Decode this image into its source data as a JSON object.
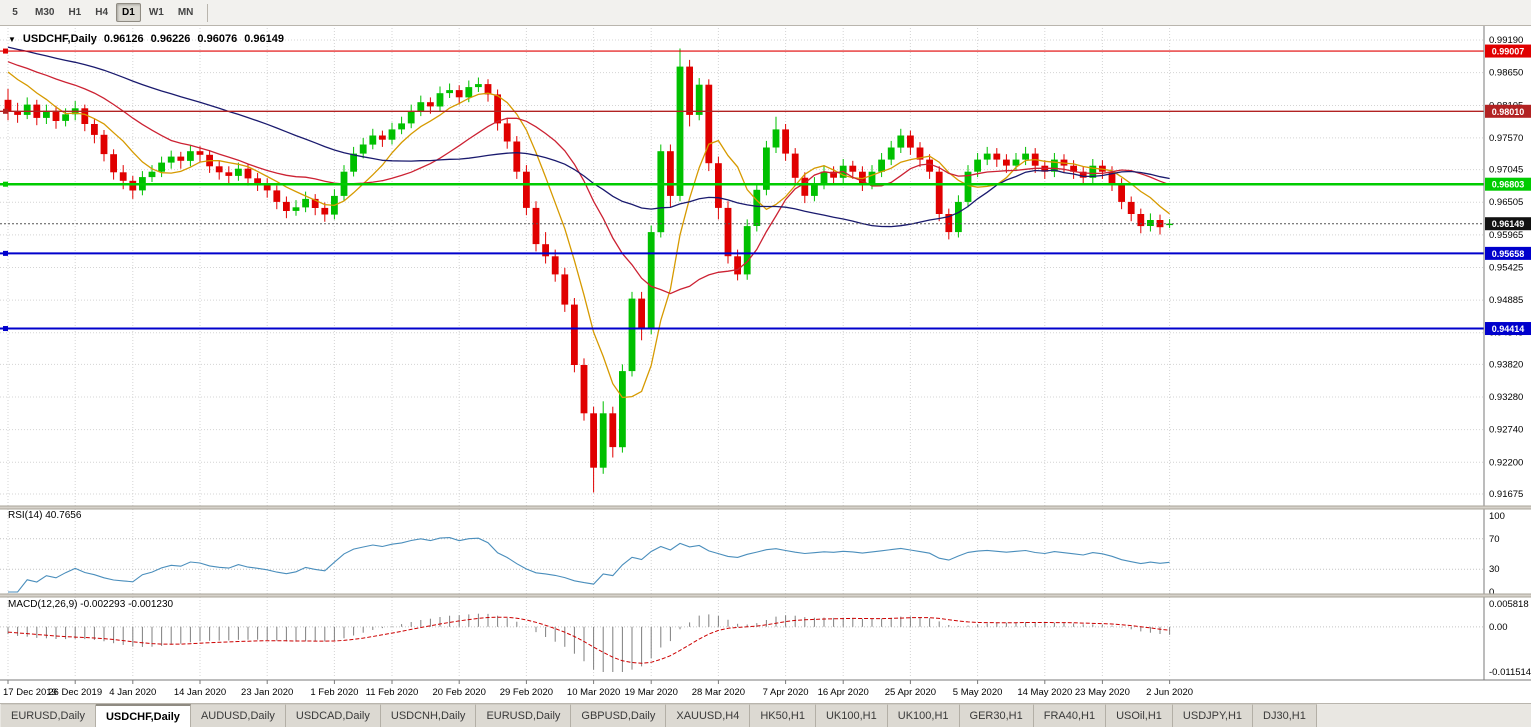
{
  "toolbar": {
    "timeframes": [
      {
        "label": "5",
        "active": false
      },
      {
        "label": "M30",
        "active": false
      },
      {
        "label": "H1",
        "active": false
      },
      {
        "label": "H4",
        "active": false
      },
      {
        "label": "D1",
        "active": true
      },
      {
        "label": "W1",
        "active": false
      },
      {
        "label": "MN",
        "active": false
      }
    ]
  },
  "chart_title": {
    "menu_icon": "▼",
    "symbol": "USDCHF,Daily",
    "open": "0.96126",
    "high": "0.96226",
    "low": "0.96076",
    "close": "0.96149"
  },
  "chart_data": {
    "type": "candlestick",
    "symbol": "USDCHF",
    "period": "Daily",
    "price_range": [
      0.91675,
      0.9919
    ],
    "price_axis_labels": [
      "0.99190",
      "0.98650",
      "0.98105",
      "0.97570",
      "0.97045",
      "0.96505",
      "0.95965",
      "0.95425",
      "0.94885",
      "0.94345",
      "0.93820",
      "0.93280",
      "0.92740",
      "0.92200",
      "0.91675"
    ],
    "date_labels": [
      "17 Dec 2019",
      "26 Dec 2019",
      "4 Jan 2020",
      "14 Jan 2020",
      "23 Jan 2020",
      "1 Feb 2020",
      "11 Feb 2020",
      "20 Feb 2020",
      "29 Feb 2020",
      "10 Mar 2020",
      "19 Mar 2020",
      "28 Mar 2020",
      "7 Apr 2020",
      "16 Apr 2020",
      "25 Apr 2020",
      "5 May 2020",
      "14 May 2020",
      "23 May 2020",
      "2 Jun 2020"
    ],
    "colors": {
      "bull": "#00c000",
      "bear": "#e00000"
    },
    "ohlc": [
      [
        0.982,
        0.9838,
        0.9786,
        0.98
      ],
      [
        0.98,
        0.9815,
        0.9782,
        0.9795
      ],
      [
        0.9795,
        0.9824,
        0.9788,
        0.9812
      ],
      [
        0.9812,
        0.982,
        0.9778,
        0.979
      ],
      [
        0.979,
        0.9812,
        0.978,
        0.9802
      ],
      [
        0.9802,
        0.981,
        0.9772,
        0.9785
      ],
      [
        0.9785,
        0.9806,
        0.9776,
        0.9796
      ],
      [
        0.9796,
        0.9818,
        0.9786,
        0.9806
      ],
      [
        0.9806,
        0.9812,
        0.9768,
        0.978
      ],
      [
        0.978,
        0.9788,
        0.9748,
        0.9762
      ],
      [
        0.9762,
        0.977,
        0.9718,
        0.973
      ],
      [
        0.973,
        0.9738,
        0.9688,
        0.97
      ],
      [
        0.97,
        0.9712,
        0.9672,
        0.9686
      ],
      [
        0.9686,
        0.9694,
        0.9656,
        0.967
      ],
      [
        0.967,
        0.9702,
        0.9662,
        0.9692
      ],
      [
        0.9692,
        0.9712,
        0.9684,
        0.9701
      ],
      [
        0.9701,
        0.9726,
        0.9692,
        0.9716
      ],
      [
        0.9716,
        0.9736,
        0.9706,
        0.9726
      ],
      [
        0.9726,
        0.9734,
        0.9706,
        0.9719
      ],
      [
        0.9719,
        0.9745,
        0.971,
        0.9735
      ],
      [
        0.9735,
        0.9743,
        0.9717,
        0.9729
      ],
      [
        0.9729,
        0.9737,
        0.9699,
        0.971
      ],
      [
        0.971,
        0.9719,
        0.9688,
        0.97
      ],
      [
        0.97,
        0.971,
        0.9682,
        0.9694
      ],
      [
        0.9694,
        0.9716,
        0.9686,
        0.9706
      ],
      [
        0.9706,
        0.9714,
        0.9678,
        0.969
      ],
      [
        0.969,
        0.9699,
        0.9669,
        0.9681
      ],
      [
        0.9681,
        0.969,
        0.9658,
        0.967
      ],
      [
        0.967,
        0.9678,
        0.9639,
        0.9651
      ],
      [
        0.9651,
        0.966,
        0.9624,
        0.9636
      ],
      [
        0.9636,
        0.9654,
        0.9628,
        0.9642
      ],
      [
        0.9642,
        0.9668,
        0.9634,
        0.9656
      ],
      [
        0.9656,
        0.9664,
        0.9629,
        0.9641
      ],
      [
        0.9641,
        0.965,
        0.9618,
        0.963
      ],
      [
        0.963,
        0.9672,
        0.9622,
        0.9661
      ],
      [
        0.9661,
        0.9712,
        0.9653,
        0.9701
      ],
      [
        0.9701,
        0.9742,
        0.9693,
        0.9731
      ],
      [
        0.9731,
        0.9757,
        0.9723,
        0.9746
      ],
      [
        0.9746,
        0.9772,
        0.9738,
        0.9761
      ],
      [
        0.9761,
        0.9769,
        0.9742,
        0.9754
      ],
      [
        0.9754,
        0.9782,
        0.9746,
        0.9771
      ],
      [
        0.9771,
        0.9792,
        0.9763,
        0.9781
      ],
      [
        0.9781,
        0.9812,
        0.9773,
        0.9801
      ],
      [
        0.9801,
        0.9827,
        0.9793,
        0.9816
      ],
      [
        0.9816,
        0.9824,
        0.9797,
        0.9809
      ],
      [
        0.9809,
        0.9842,
        0.9801,
        0.9831
      ],
      [
        0.9831,
        0.9847,
        0.9823,
        0.9836
      ],
      [
        0.9836,
        0.9844,
        0.9812,
        0.9824
      ],
      [
        0.9824,
        0.9852,
        0.9816,
        0.9841
      ],
      [
        0.9841,
        0.9857,
        0.9833,
        0.9846
      ],
      [
        0.9846,
        0.9854,
        0.9817,
        0.9829
      ],
      [
        0.9829,
        0.9837,
        0.9769,
        0.9781
      ],
      [
        0.9781,
        0.979,
        0.9739,
        0.9751
      ],
      [
        0.9751,
        0.976,
        0.9689,
        0.9701
      ],
      [
        0.9701,
        0.9712,
        0.9629,
        0.9641
      ],
      [
        0.9641,
        0.9652,
        0.9569,
        0.9581
      ],
      [
        0.9581,
        0.9601,
        0.9549,
        0.9561
      ],
      [
        0.9561,
        0.9572,
        0.9519,
        0.9531
      ],
      [
        0.9531,
        0.9542,
        0.9469,
        0.9481
      ],
      [
        0.9481,
        0.9492,
        0.9369,
        0.9381
      ],
      [
        0.9381,
        0.9392,
        0.9289,
        0.9301
      ],
      [
        0.9301,
        0.9312,
        0.917,
        0.9211
      ],
      [
        0.9211,
        0.9321,
        0.9201,
        0.9301
      ],
      [
        0.9301,
        0.9312,
        0.9228,
        0.9245
      ],
      [
        0.9245,
        0.9382,
        0.9236,
        0.9371
      ],
      [
        0.9371,
        0.9502,
        0.9362,
        0.9491
      ],
      [
        0.9491,
        0.9502,
        0.9422,
        0.9441
      ],
      [
        0.9441,
        0.9612,
        0.9432,
        0.9601
      ],
      [
        0.9601,
        0.9746,
        0.9592,
        0.9735
      ],
      [
        0.9735,
        0.9746,
        0.9642,
        0.9661
      ],
      [
        0.9661,
        0.9905,
        0.9652,
        0.9875
      ],
      [
        0.9875,
        0.9886,
        0.9776,
        0.9795
      ],
      [
        0.9795,
        0.9856,
        0.9786,
        0.9845
      ],
      [
        0.9845,
        0.9854,
        0.9702,
        0.9715
      ],
      [
        0.9715,
        0.9726,
        0.9622,
        0.9641
      ],
      [
        0.9641,
        0.9652,
        0.9549,
        0.9561
      ],
      [
        0.9561,
        0.9572,
        0.9521,
        0.9531
      ],
      [
        0.9531,
        0.9622,
        0.9522,
        0.9611
      ],
      [
        0.9611,
        0.9682,
        0.9602,
        0.9671
      ],
      [
        0.9671,
        0.9752,
        0.9662,
        0.9741
      ],
      [
        0.9741,
        0.9792,
        0.9732,
        0.9771
      ],
      [
        0.9771,
        0.978,
        0.9719,
        0.9731
      ],
      [
        0.9731,
        0.974,
        0.9679,
        0.9691
      ],
      [
        0.9691,
        0.97,
        0.9649,
        0.9661
      ],
      [
        0.9661,
        0.9692,
        0.9652,
        0.9681
      ],
      [
        0.9681,
        0.9712,
        0.9672,
        0.9701
      ],
      [
        0.9701,
        0.971,
        0.9679,
        0.9691
      ],
      [
        0.9691,
        0.9722,
        0.9682,
        0.9711
      ],
      [
        0.9711,
        0.9719,
        0.9689,
        0.9701
      ],
      [
        0.9701,
        0.971,
        0.9669,
        0.9681
      ],
      [
        0.9681,
        0.9712,
        0.9672,
        0.9701
      ],
      [
        0.9701,
        0.9732,
        0.9692,
        0.9721
      ],
      [
        0.9721,
        0.9752,
        0.9712,
        0.9741
      ],
      [
        0.9741,
        0.9772,
        0.9732,
        0.9761
      ],
      [
        0.9761,
        0.9769,
        0.9729,
        0.9741
      ],
      [
        0.9741,
        0.975,
        0.9709,
        0.9721
      ],
      [
        0.9721,
        0.973,
        0.9689,
        0.9701
      ],
      [
        0.9701,
        0.971,
        0.9619,
        0.9631
      ],
      [
        0.9631,
        0.964,
        0.9589,
        0.9601
      ],
      [
        0.9601,
        0.9662,
        0.9592,
        0.9651
      ],
      [
        0.9651,
        0.9712,
        0.9642,
        0.9701
      ],
      [
        0.9701,
        0.9732,
        0.9692,
        0.9721
      ],
      [
        0.9721,
        0.9742,
        0.9712,
        0.9731
      ],
      [
        0.9731,
        0.974,
        0.9709,
        0.9721
      ],
      [
        0.9721,
        0.973,
        0.9699,
        0.9711
      ],
      [
        0.9711,
        0.9732,
        0.9702,
        0.9721
      ],
      [
        0.9721,
        0.9742,
        0.9712,
        0.9731
      ],
      [
        0.9731,
        0.974,
        0.9699,
        0.9711
      ],
      [
        0.9711,
        0.972,
        0.9689,
        0.9701
      ],
      [
        0.9701,
        0.9732,
        0.9692,
        0.9721
      ],
      [
        0.9721,
        0.973,
        0.9699,
        0.9711
      ],
      [
        0.9711,
        0.972,
        0.9689,
        0.9701
      ],
      [
        0.9701,
        0.971,
        0.9679,
        0.9691
      ],
      [
        0.9691,
        0.9722,
        0.9682,
        0.9711
      ],
      [
        0.9711,
        0.972,
        0.9689,
        0.9701
      ],
      [
        0.9701,
        0.971,
        0.9669,
        0.9681
      ],
      [
        0.9681,
        0.969,
        0.9639,
        0.9651
      ],
      [
        0.9651,
        0.966,
        0.9619,
        0.9631
      ],
      [
        0.9631,
        0.964,
        0.9599,
        0.9611
      ],
      [
        0.9611,
        0.9632,
        0.9602,
        0.9621
      ],
      [
        0.9621,
        0.963,
        0.9597,
        0.9609
      ],
      [
        0.96126,
        0.96226,
        0.96076,
        0.96149
      ]
    ],
    "ma_warmup_closes": [
      0.995,
      0.9948,
      0.9946,
      0.9944,
      0.9942,
      0.994,
      0.9938,
      0.9936,
      0.9934,
      0.9932,
      0.993,
      0.9928,
      0.9926,
      0.9924,
      0.9922,
      0.992,
      0.9918,
      0.9916,
      0.9914,
      0.9912,
      0.991,
      0.9908,
      0.9906,
      0.9904,
      0.9902,
      0.99,
      0.9898,
      0.9896,
      0.9894,
      0.9892,
      0.989,
      0.9888,
      0.9886,
      0.9884,
      0.9882,
      0.988,
      0.9878,
      0.9876,
      0.9874,
      0.9872
    ],
    "overlays": {
      "moving_averages": [
        {
          "name": "ma-fast",
          "type": "sma",
          "period": 7,
          "color": "#d69a00"
        },
        {
          "name": "ma-medium",
          "type": "sma",
          "period": 18,
          "color": "#cc2233"
        },
        {
          "name": "ma-slow",
          "type": "sma",
          "period": 40,
          "color": "#1a1a6e"
        }
      ]
    },
    "levels": [
      {
        "value": 0.99007,
        "label": "0.99007",
        "color": "#e00000",
        "width": 1.2
      },
      {
        "value": 0.9801,
        "label": "0.98010",
        "color": "#b22222",
        "width": 1.4
      },
      {
        "value": 0.96803,
        "label": "0.96803",
        "color": "#00cc00",
        "width": 2.5
      },
      {
        "value": 0.95658,
        "label": "0.95658",
        "color": "#0000cc",
        "width": 2
      },
      {
        "value": 0.94414,
        "label": "0.94414",
        "color": "#0000cc",
        "width": 2
      }
    ],
    "current_price": {
      "value": 0.96149,
      "label": "0.96149",
      "color": "#111111"
    },
    "indicators": [
      {
        "name": "RSI(14)",
        "label": "RSI(14) 40.7656",
        "value": "40.7656",
        "levels": [
          "100",
          "70",
          "30",
          "0"
        ],
        "color": "#4a8ebc"
      },
      {
        "name": "MACD(12,26,9)",
        "label": "MACD(12,26,9) -0.002293 -0.001230",
        "macd_value": "-0.002293",
        "signal_value": "-0.001230",
        "axis_labels": [
          "0.005818",
          "0.00",
          "-0.011514"
        ],
        "histogram_color": "#7f7f7f",
        "signal_color": "#cc0000"
      }
    ]
  },
  "tabs": {
    "selected_index": 1,
    "items": [
      "EURUSD,Daily",
      "USDCHF,Daily",
      "AUDUSD,Daily",
      "USDCAD,Daily",
      "USDCNH,Daily",
      "EURUSD,Daily",
      "GBPUSD,Daily",
      "XAUUSD,H4",
      "HK50,H1",
      "UK100,H1",
      "UK100,H1",
      "GER30,H1",
      "FRA40,H1",
      "USOil,H1",
      "USDJPY,H1",
      "DJ30,H1"
    ]
  }
}
